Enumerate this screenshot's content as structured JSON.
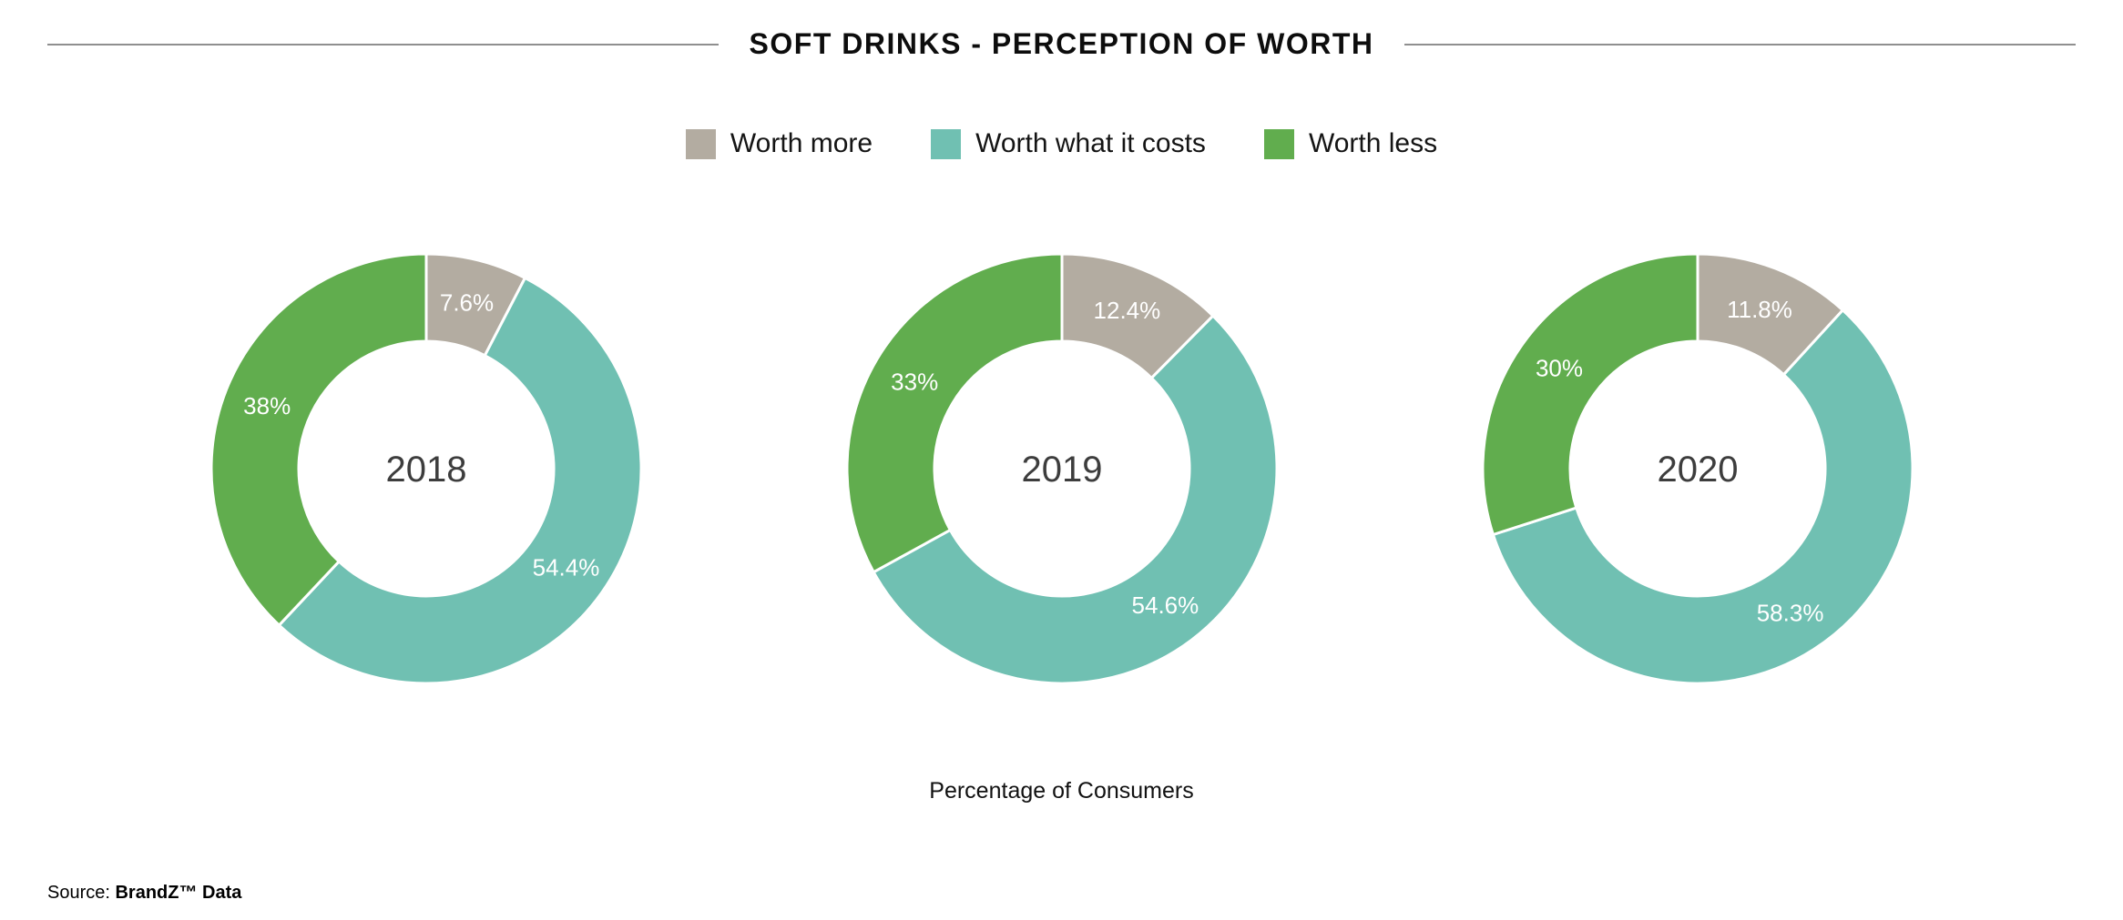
{
  "header": {
    "title": "SOFT DRINKS - PERCEPTION OF WORTH"
  },
  "chart_data": {
    "type": "pie",
    "variant": "donut",
    "title": "SOFT DRINKS - PERCEPTION OF WORTH",
    "categories": [
      "Worth more",
      "Worth what it costs",
      "Worth less"
    ],
    "colors": [
      "#b3aca1",
      "#70c0b2",
      "#61ad4e"
    ],
    "legend_position": "top",
    "charts": [
      {
        "label": "2018",
        "values": [
          7.6,
          54.4,
          38.0
        ],
        "data_labels": [
          "7.6%",
          "54.4%",
          "38%"
        ]
      },
      {
        "label": "2019",
        "values": [
          12.4,
          54.6,
          33.0
        ],
        "data_labels": [
          "12.4%",
          "54.6%",
          "33%"
        ]
      },
      {
        "label": "2020",
        "values": [
          11.8,
          58.3,
          30.0
        ],
        "data_labels": [
          "11.8%",
          "58.3%",
          "30%"
        ]
      }
    ],
    "xlabel": "Percentage of Consumers"
  },
  "footer": {
    "source_prefix": "Source: ",
    "source_name": "BrandZ™ Data"
  }
}
